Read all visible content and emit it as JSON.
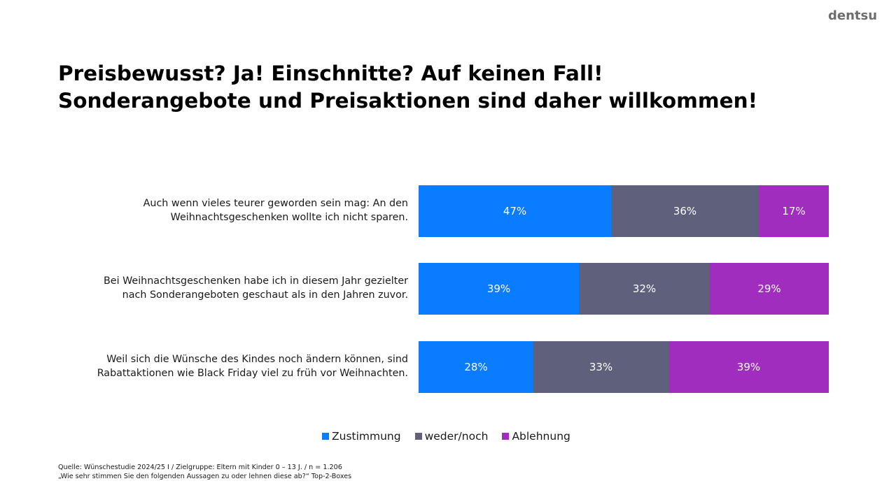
{
  "brand": {
    "logo": "dentsu"
  },
  "title": {
    "line1": "Preisbewusst? Ja! Einschnitte? Auf keinen Fall!",
    "line2": "Sonderangebote und Preisaktionen sind daher willkommen!"
  },
  "chart_data": {
    "type": "bar",
    "orientation": "horizontal",
    "stacked": true,
    "normalized": true,
    "title": "Preisbewusst? Ja! Einschnitte? Auf keinen Fall! Sonderangebote und Preisaktionen sind daher willkommen!",
    "xlabel": "",
    "ylabel": "",
    "xlim": [
      0,
      100
    ],
    "unit": "%",
    "grid": false,
    "legend_position": "bottom",
    "categories": [
      {
        "line1": "Auch wenn vieles teurer geworden sein mag: An den",
        "line2": "Weihnachtsgeschenken wollte ich nicht sparen."
      },
      {
        "line1": "Bei Weihnachtsgeschenken habe ich in diesem Jahr gezielter",
        "line2": "nach Sonderangeboten geschaut als in den Jahren zuvor."
      },
      {
        "line1": "Weil sich die Wünsche des Kindes noch ändern können, sind",
        "line2": "Rabattaktionen wie Black Friday viel zu früh vor Weihnachten."
      }
    ],
    "series": [
      {
        "name": "Zustimmung",
        "color": "#0a7cff",
        "values": [
          47,
          39,
          28
        ],
        "labels": [
          "47%",
          "39%",
          "28%"
        ]
      },
      {
        "name": "weder/noch",
        "color": "#5f607c",
        "values": [
          36,
          32,
          33
        ],
        "labels": [
          "36%",
          "32%",
          "33%"
        ]
      },
      {
        "name": "Ablehnung",
        "color": "#a12dbf",
        "values": [
          17,
          29,
          39
        ],
        "labels": [
          "17%",
          "29%",
          "39%"
        ]
      }
    ]
  },
  "footer": {
    "source": "Quelle: Wünschestudie 2024/25 I / Zielgruppe: Eltern mit Kinder 0 – 13 J. / n = 1.206",
    "question": "„Wie sehr stimmen Sie den folgenden Aussagen zu oder lehnen diese ab?“ Top-2-Boxes"
  }
}
